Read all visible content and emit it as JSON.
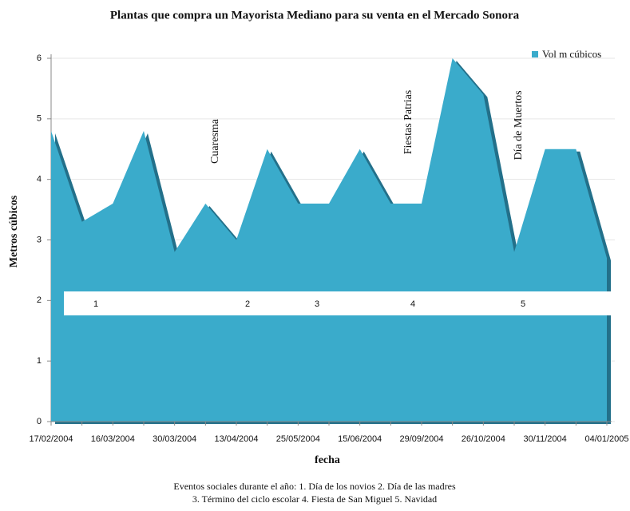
{
  "chart_data": {
    "type": "area",
    "title": "Plantas que compra un Mayorista Mediano para su venta en el Mercado Sonora",
    "x_label": "fecha",
    "y_label": "Metros cúbicos",
    "categories": [
      "17/02/2004",
      null,
      "16/03/2004",
      null,
      "30/03/2004",
      null,
      "13/04/2004",
      null,
      "25/05/2004",
      null,
      "15/06/2004",
      null,
      "29/09/2004",
      null,
      "26/10/2004",
      null,
      "30/11/2004",
      null,
      "04/01/2005"
    ],
    "series": [
      {
        "name": "Vol m cúbicos",
        "color": "#3aabcb",
        "values": [
          4.8,
          3.3,
          3.6,
          4.8,
          2.8,
          3.6,
          3.0,
          4.5,
          3.6,
          3.6,
          4.5,
          3.6,
          3.6,
          6.0,
          5.4,
          2.8,
          4.5,
          4.5,
          2.7
        ]
      }
    ],
    "ylim": [
      0,
      6
    ],
    "yticks": [
      0,
      1,
      2,
      3,
      4,
      5,
      6
    ],
    "grid": true,
    "legend": "top-right",
    "annotations": [
      "Cuaresma",
      "Fiestas Patrias",
      "Día de Muertos"
    ],
    "event_markers": [
      "1",
      "2",
      "3",
      "4",
      "5"
    ],
    "note": [
      "Eventos sociales durante el año: 1. Día de los novios 2. Día de las madres",
      "3. Término del ciclo escolar 4. Fiesta de San Miguel 5. Navidad"
    ]
  }
}
